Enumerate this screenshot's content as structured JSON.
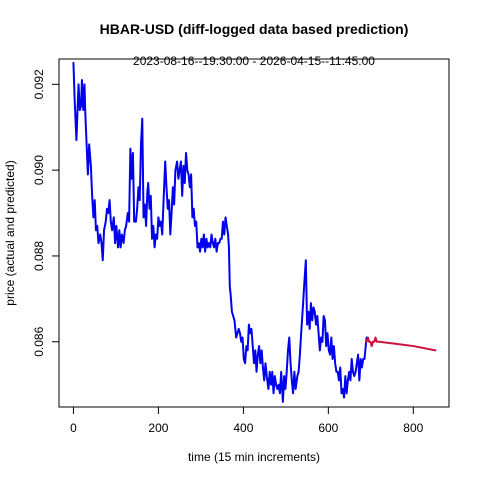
{
  "chart_data": {
    "type": "line",
    "title": "HBAR-USD (diff-logged data based prediction)",
    "subtitle": "2023-08-16--19:30:00  -  2026-04-15--11:45:00",
    "xlabel": "time (15 min increments)",
    "ylabel": "price (actual and predicted)",
    "xlim": [
      -34,
      884
    ],
    "ylim": [
      0.08448,
      0.09259
    ],
    "xticks": [
      0,
      200,
      400,
      600,
      800
    ],
    "xtick_labels": [
      "0",
      "200",
      "400",
      "600",
      "800"
    ],
    "yticks": [
      0.086,
      0.088,
      0.09,
      0.092
    ],
    "ytick_labels": [
      "0.086",
      "0.088",
      "0.090",
      "0.092"
    ],
    "grid": false,
    "series": [
      {
        "role": "actual",
        "color": "#0000ee",
        "points": [
          [
            0,
            0.0925
          ],
          [
            3,
            0.0916
          ],
          [
            7,
            0.0907
          ],
          [
            10,
            0.0915
          ],
          [
            12,
            0.092
          ],
          [
            15,
            0.0914
          ],
          [
            18,
            0.0915
          ],
          [
            20,
            0.0921
          ],
          [
            23,
            0.0914
          ],
          [
            26,
            0.092
          ],
          [
            28,
            0.0913
          ],
          [
            31,
            0.0906
          ],
          [
            34,
            0.0899
          ],
          [
            37,
            0.0906
          ],
          [
            41,
            0.0901
          ],
          [
            44,
            0.0894
          ],
          [
            47,
            0.0889
          ],
          [
            50,
            0.0893
          ],
          [
            53,
            0.0886
          ],
          [
            56,
            0.0887
          ],
          [
            59,
            0.0883
          ],
          [
            63,
            0.0885
          ],
          [
            66,
            0.0883
          ],
          [
            69,
            0.0879
          ],
          [
            72,
            0.0886
          ],
          [
            76,
            0.0888
          ],
          [
            79,
            0.0891
          ],
          [
            82,
            0.089
          ],
          [
            85,
            0.0893
          ],
          [
            88,
            0.0888
          ],
          [
            91,
            0.0886
          ],
          [
            95,
            0.0889
          ],
          [
            98,
            0.0883
          ],
          [
            101,
            0.0887
          ],
          [
            105,
            0.0882
          ],
          [
            108,
            0.0886
          ],
          [
            111,
            0.0882
          ],
          [
            114,
            0.0885
          ],
          [
            118,
            0.0883
          ],
          [
            121,
            0.0886
          ],
          [
            124,
            0.0887
          ],
          [
            128,
            0.089
          ],
          [
            131,
            0.0888
          ],
          [
            134,
            0.0905
          ],
          [
            137,
            0.0898
          ],
          [
            140,
            0.0904
          ],
          [
            143,
            0.0888
          ],
          [
            147,
            0.0888
          ],
          [
            150,
            0.0891
          ],
          [
            153,
            0.0896
          ],
          [
            156,
            0.0893
          ],
          [
            159,
            0.0906
          ],
          [
            162,
            0.0912
          ],
          [
            165,
            0.0889
          ],
          [
            168,
            0.0892
          ],
          [
            171,
            0.0887
          ],
          [
            174,
            0.0895
          ],
          [
            176,
            0.0897
          ],
          [
            179,
            0.0891
          ],
          [
            182,
            0.0894
          ],
          [
            185,
            0.0884
          ],
          [
            188,
            0.0887
          ],
          [
            191,
            0.0882
          ],
          [
            194,
            0.0885
          ],
          [
            197,
            0.0884
          ],
          [
            200,
            0.0889
          ],
          [
            203,
            0.0887
          ],
          [
            206,
            0.0888
          ],
          [
            209,
            0.0885
          ],
          [
            213,
            0.0895
          ],
          [
            216,
            0.0902
          ],
          [
            219,
            0.0896
          ],
          [
            222,
            0.0891
          ],
          [
            225,
            0.0893
          ],
          [
            228,
            0.0885
          ],
          [
            231,
            0.089
          ],
          [
            234,
            0.0896
          ],
          [
            237,
            0.0892
          ],
          [
            240,
            0.09
          ],
          [
            244,
            0.0902
          ],
          [
            247,
            0.0898
          ],
          [
            250,
            0.09
          ],
          [
            253,
            0.0902
          ],
          [
            256,
            0.0894
          ],
          [
            259,
            0.0901
          ],
          [
            262,
            0.0897
          ],
          [
            265,
            0.0904
          ],
          [
            268,
            0.09
          ],
          [
            271,
            0.0899
          ],
          [
            274,
            0.0896
          ],
          [
            277,
            0.0899
          ],
          [
            280,
            0.0889
          ],
          [
            283,
            0.0891
          ],
          [
            286,
            0.0887
          ],
          [
            289,
            0.0888
          ],
          [
            292,
            0.0882
          ],
          [
            295,
            0.0883
          ],
          [
            298,
            0.0881
          ],
          [
            301,
            0.0884
          ],
          [
            304,
            0.0882
          ],
          [
            307,
            0.0885
          ],
          [
            310,
            0.0881
          ],
          [
            313,
            0.0884
          ],
          [
            316,
            0.0882
          ],
          [
            319,
            0.0883
          ],
          [
            322,
            0.0882
          ],
          [
            325,
            0.0885
          ],
          [
            328,
            0.0883
          ],
          [
            331,
            0.0882
          ],
          [
            334,
            0.0884
          ],
          [
            337,
            0.0881
          ],
          [
            340,
            0.0883
          ],
          [
            343,
            0.0883
          ],
          [
            346,
            0.0884
          ],
          [
            349,
            0.0884
          ],
          [
            352,
            0.0888
          ],
          [
            355,
            0.0885
          ],
          [
            358,
            0.0889
          ],
          [
            361,
            0.0887
          ],
          [
            364,
            0.0885
          ],
          [
            366,
            0.0882
          ],
          [
            368,
            0.0873
          ],
          [
            370,
            0.0871
          ],
          [
            373,
            0.0867
          ],
          [
            376,
            0.0866
          ],
          [
            379,
            0.0865
          ],
          [
            383,
            0.0861
          ],
          [
            386,
            0.0862
          ],
          [
            389,
            0.0863
          ],
          [
            392,
            0.0862
          ],
          [
            395,
            0.086
          ],
          [
            398,
            0.0861
          ],
          [
            401,
            0.0856
          ],
          [
            404,
            0.0855
          ],
          [
            407,
            0.0859
          ],
          [
            410,
            0.0858
          ],
          [
            413,
            0.0864
          ],
          [
            416,
            0.0862
          ],
          [
            419,
            0.0863
          ],
          [
            422,
            0.0859
          ],
          [
            425,
            0.0855
          ],
          [
            428,
            0.0858
          ],
          [
            431,
            0.0853
          ],
          [
            434,
            0.0857
          ],
          [
            437,
            0.0859
          ],
          [
            440,
            0.0855
          ],
          [
            443,
            0.0858
          ],
          [
            446,
            0.0854
          ],
          [
            449,
            0.0851
          ],
          [
            452,
            0.0855
          ],
          [
            455,
            0.0852
          ],
          [
            459,
            0.0849
          ],
          [
            462,
            0.0853
          ],
          [
            465,
            0.085
          ],
          [
            468,
            0.0853
          ],
          [
            471,
            0.0848
          ],
          [
            474,
            0.0852
          ],
          [
            477,
            0.085
          ],
          [
            480,
            0.0849
          ],
          [
            483,
            0.085
          ],
          [
            486,
            0.0848
          ],
          [
            489,
            0.0853
          ],
          [
            493,
            0.0846
          ],
          [
            496,
            0.0852
          ],
          [
            499,
            0.0849
          ],
          [
            502,
            0.0853
          ],
          [
            505,
            0.0858
          ],
          [
            508,
            0.0861
          ],
          [
            511,
            0.0855
          ],
          [
            514,
            0.0851
          ],
          [
            517,
            0.0848
          ],
          [
            520,
            0.0853
          ],
          [
            523,
            0.0849
          ],
          [
            527,
            0.0852
          ],
          [
            530,
            0.0853
          ],
          [
            533,
            0.0857
          ],
          [
            536,
            0.0862
          ],
          [
            540,
            0.0868
          ],
          [
            543,
            0.0873
          ],
          [
            547,
            0.0879
          ],
          [
            550,
            0.0864
          ],
          [
            553,
            0.0867
          ],
          [
            556,
            0.0863
          ],
          [
            559,
            0.0869
          ],
          [
            562,
            0.0865
          ],
          [
            565,
            0.0868
          ],
          [
            568,
            0.0867
          ],
          [
            571,
            0.0864
          ],
          [
            574,
            0.0866
          ],
          [
            577,
            0.0862
          ],
          [
            580,
            0.0858
          ],
          [
            583,
            0.0861
          ],
          [
            586,
            0.086
          ],
          [
            589,
            0.0866
          ],
          [
            592,
            0.0865
          ],
          [
            595,
            0.0859
          ],
          [
            598,
            0.0862
          ],
          [
            601,
            0.0858
          ],
          [
            604,
            0.0857
          ],
          [
            607,
            0.0861
          ],
          [
            610,
            0.0856
          ],
          [
            613,
            0.0859
          ],
          [
            616,
            0.0855
          ],
          [
            619,
            0.0853
          ],
          [
            622,
            0.0853
          ],
          [
            625,
            0.0851
          ],
          [
            628,
            0.0854
          ],
          [
            631,
            0.0848
          ],
          [
            634,
            0.0849
          ],
          [
            637,
            0.0847
          ],
          [
            640,
            0.0852
          ],
          [
            643,
            0.0848
          ],
          [
            646,
            0.0851
          ],
          [
            649,
            0.0853
          ],
          [
            652,
            0.0851
          ],
          [
            655,
            0.0856
          ],
          [
            658,
            0.0853
          ],
          [
            661,
            0.0852
          ],
          [
            664,
            0.0853
          ],
          [
            667,
            0.0855
          ],
          [
            670,
            0.0857
          ],
          [
            673,
            0.0851
          ],
          [
            676,
            0.0856
          ],
          [
            679,
            0.0854
          ],
          [
            682,
            0.0856
          ],
          [
            685,
            0.0856
          ],
          [
            688,
            0.0859
          ],
          [
            690,
            0.0861
          ]
        ]
      },
      {
        "role": "predicted",
        "color": "#c8143c",
        "points": [
          [
            690,
            0.086
          ],
          [
            693,
            0.0861
          ],
          [
            696,
            0.086
          ],
          [
            699,
            0.086
          ],
          [
            702,
            0.0859
          ],
          [
            705,
            0.086
          ],
          [
            708,
            0.086
          ],
          [
            711,
            0.0861
          ],
          [
            714,
            0.086
          ],
          [
            717,
            0.086
          ],
          [
            720,
            0.086
          ],
          [
            760,
            0.08595
          ],
          [
            800,
            0.0859
          ],
          [
            852,
            0.0858
          ]
        ]
      }
    ]
  }
}
